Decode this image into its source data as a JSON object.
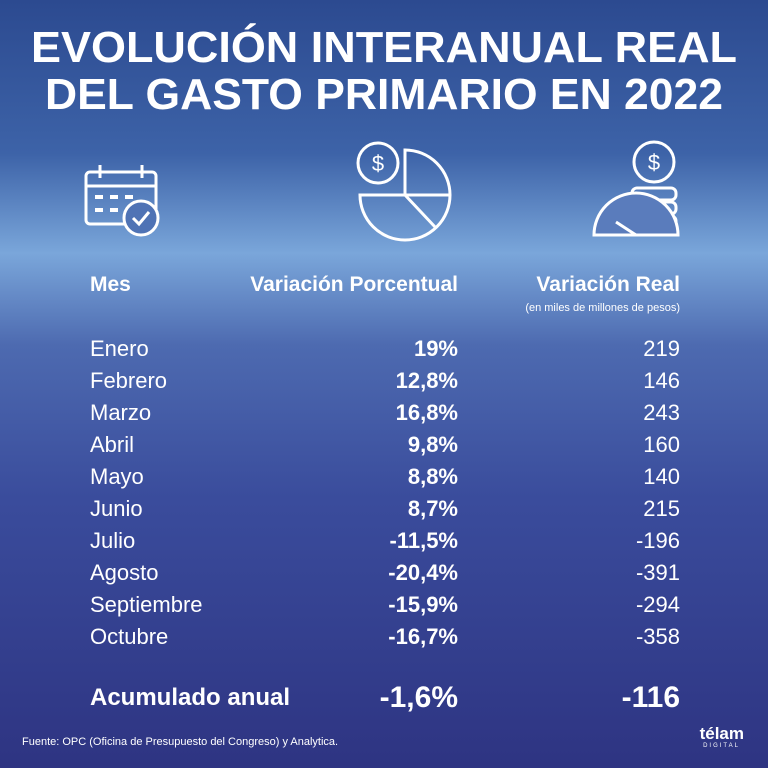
{
  "title": {
    "line1": "EVOLUCIÓN INTERANUAL REAL",
    "line2": "DEL GASTO PRIMARIO EN 2022"
  },
  "table": {
    "headers": [
      "Mes",
      "Variación Porcentual",
      "Variación Real"
    ],
    "header_note": "(en miles de millones de pesos)",
    "rows": [
      [
        "Enero",
        "19%",
        "219"
      ],
      [
        "Febrero",
        "12,8%",
        "146"
      ],
      [
        "Marzo",
        "16,8%",
        "243"
      ],
      [
        "Abril",
        "9,8%",
        "160"
      ],
      [
        "Mayo",
        "8,8%",
        "140"
      ],
      [
        "Junio",
        "8,7%",
        "215"
      ],
      [
        "Julio",
        "-11,5%",
        "-196"
      ],
      [
        "Agosto",
        "-20,4%",
        "-391"
      ],
      [
        "Septiembre",
        "-15,9%",
        "-294"
      ],
      [
        "Octubre",
        "-16,7%",
        "-358"
      ]
    ],
    "total": [
      "Acumulado anual",
      "-1,6%",
      "-116"
    ]
  },
  "footer": {
    "source": "Fuente: OPC (Oficina de Presupuesto del Congreso) y Analytica.",
    "logo": "télam",
    "logo_sub": "DIGITAL"
  }
}
